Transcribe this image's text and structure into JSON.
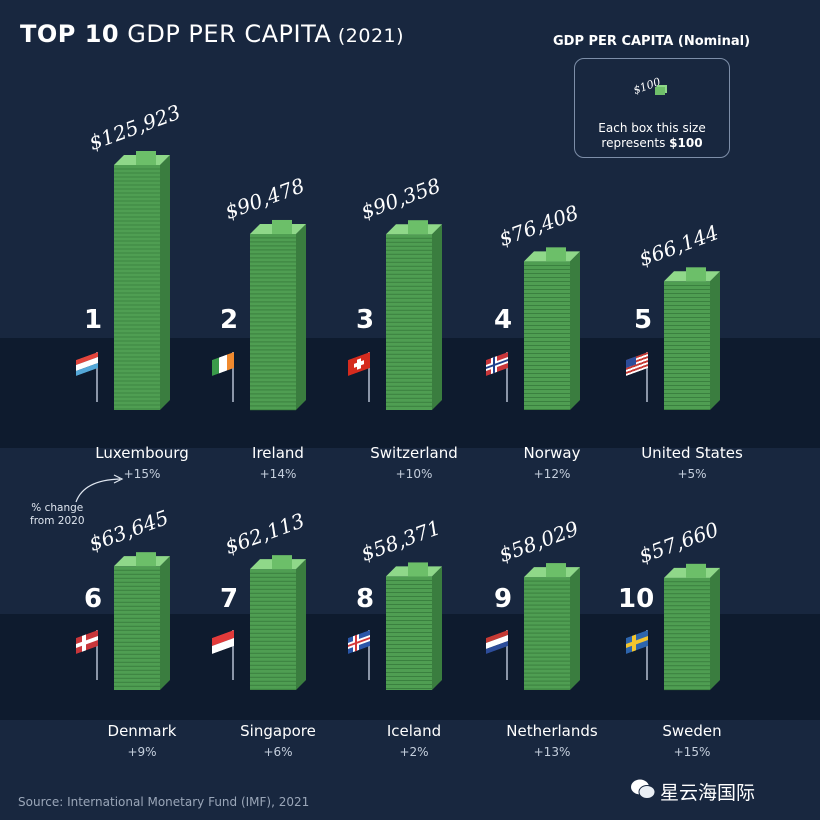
{
  "title": {
    "bold": "TOP 10",
    "main": " GDP PER CAPITA",
    "year": " (2021)"
  },
  "legend": {
    "heading": "GDP PER CAPITA (Nominal)",
    "amount": "$100",
    "line1": "Each box this size",
    "line2_prefix": "represents ",
    "line2_value": "$100"
  },
  "annotation": {
    "line1": "% change",
    "line2": "from 2020"
  },
  "source": "Source: International Monetary Fund (IMF), 2021",
  "watermark": "星云海国际",
  "colors": {
    "background": "#18273f",
    "band": "#0d1a2c",
    "tower": "#4a9b4e",
    "tower_light": "#7cc678",
    "text": "#ffffff"
  },
  "chart_data": {
    "type": "bar",
    "title": "TOP 10 GDP PER CAPITA (2021)",
    "ylabel": "GDP PER CAPITA (Nominal)",
    "categories": [
      "Luxembourg",
      "Ireland",
      "Switzerland",
      "Norway",
      "United States",
      "Denmark",
      "Singapore",
      "Iceland",
      "Netherlands",
      "Sweden"
    ],
    "values": [
      125923,
      90478,
      90358,
      76408,
      66144,
      63645,
      62113,
      58371,
      58029,
      57660
    ],
    "value_labels": [
      "$125,923",
      "$90,478",
      "$90,358",
      "$76,408",
      "$66,144",
      "$63,645",
      "$62,113",
      "$58,371",
      "$58,029",
      "$57,660"
    ],
    "ranks": [
      "1",
      "2",
      "3",
      "4",
      "5",
      "6",
      "7",
      "8",
      "9",
      "10"
    ],
    "change_labels": [
      "+15%",
      "+14%",
      "+10%",
      "+12%",
      "+5%",
      "+9%",
      "+6%",
      "+2%",
      "+13%",
      "+15%"
    ],
    "change_pct": [
      15,
      14,
      10,
      12,
      5,
      9,
      6,
      2,
      13,
      15
    ],
    "flags": [
      "luxembourg-flag",
      "ireland-flag",
      "switzerland-flag",
      "norway-flag",
      "usa-flag",
      "denmark-flag",
      "singapore-flag",
      "iceland-flag",
      "netherlands-flag",
      "sweden-flag"
    ]
  }
}
